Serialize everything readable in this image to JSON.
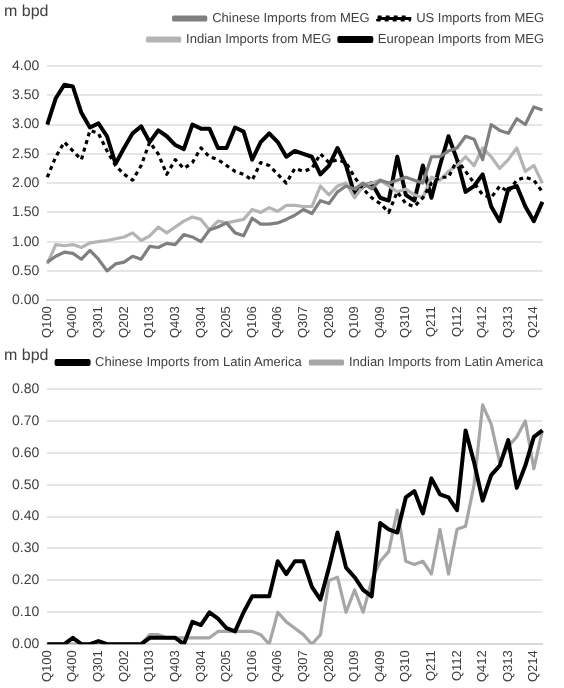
{
  "chart_data": [
    {
      "type": "line",
      "ylabel": "m bpd",
      "grid": "y",
      "legend": "top",
      "marker": "none",
      "categories": [
        "Q100",
        null,
        null,
        "Q400",
        null,
        null,
        "Q301",
        null,
        null,
        "Q202",
        null,
        null,
        "Q103",
        null,
        null,
        "Q403",
        null,
        null,
        "Q304",
        null,
        null,
        "Q205",
        null,
        null,
        "Q106",
        null,
        null,
        "Q406",
        null,
        null,
        "Q307",
        null,
        null,
        "Q208",
        null,
        null,
        "Q109",
        null,
        null,
        "Q409",
        null,
        null,
        "Q310",
        null,
        null,
        "Q211",
        null,
        null,
        "Q112",
        null,
        null,
        "Q412",
        null,
        null,
        "Q313",
        null,
        null,
        "Q214",
        null
      ],
      "ylim": [
        0,
        4
      ],
      "yticks": [
        {
          "value": 0,
          "label": "0.00"
        },
        {
          "value": 0.5,
          "label": "0.50"
        },
        {
          "value": 1,
          "label": "1.00"
        },
        {
          "value": 1.5,
          "label": "1.50"
        },
        {
          "value": 2,
          "label": "2.00"
        },
        {
          "value": 2.5,
          "label": "2.50"
        },
        {
          "value": 3,
          "label": "3.00"
        },
        {
          "value": 3.5,
          "label": "3.50"
        },
        {
          "value": 4,
          "label": "4.00"
        }
      ],
      "series": [
        {
          "name": "Chinese Imports from MEG",
          "color": "#7f7f7f",
          "line_style": "solid",
          "values": [
            0.65,
            0.75,
            0.82,
            0.8,
            0.7,
            0.85,
            0.7,
            0.5,
            0.62,
            0.65,
            0.75,
            0.7,
            0.92,
            0.9,
            0.97,
            0.95,
            1.12,
            1.08,
            1.0,
            1.2,
            1.25,
            1.32,
            1.15,
            1.1,
            1.4,
            1.3,
            1.3,
            1.32,
            1.38,
            1.45,
            1.55,
            1.48,
            1.7,
            1.65,
            1.85,
            1.95,
            1.9,
            2.0,
            1.9,
            2.05,
            2.0,
            2.05,
            2.1,
            2.05,
            2.0,
            2.45,
            2.45,
            2.55,
            2.6,
            2.8,
            2.75,
            2.4,
            3.0,
            2.9,
            2.85,
            3.1,
            3.0,
            3.3,
            3.25
          ]
        },
        {
          "name": "US Imports from MEG",
          "color": "#000000",
          "line_style": "dotted",
          "values": [
            2.1,
            2.45,
            2.7,
            2.55,
            2.4,
            2.9,
            2.85,
            2.55,
            2.3,
            2.15,
            2.05,
            2.3,
            2.7,
            2.5,
            2.15,
            2.4,
            2.25,
            2.35,
            2.6,
            2.45,
            2.4,
            2.3,
            2.2,
            2.15,
            2.05,
            2.35,
            2.3,
            2.15,
            2.0,
            2.25,
            2.2,
            2.25,
            2.5,
            2.35,
            2.4,
            2.35,
            2.1,
            1.9,
            1.75,
            1.65,
            1.5,
            1.85,
            1.65,
            1.6,
            1.75,
            2.0,
            2.1,
            2.1,
            2.4,
            2.2,
            2.0,
            1.8,
            1.75,
            1.95,
            1.85,
            2.05,
            2.1,
            2.05,
            1.85
          ]
        },
        {
          "name": "Indian Imports from MEG",
          "color": "#b4b4b4",
          "line_style": "solid",
          "values": [
            0.62,
            0.95,
            0.93,
            0.95,
            0.9,
            0.98,
            1.0,
            1.02,
            1.05,
            1.08,
            1.15,
            1.02,
            1.1,
            1.25,
            1.15,
            1.25,
            1.35,
            1.42,
            1.38,
            1.2,
            1.35,
            1.32,
            1.35,
            1.38,
            1.55,
            1.5,
            1.58,
            1.52,
            1.62,
            1.62,
            1.6,
            1.6,
            1.95,
            1.8,
            1.95,
            2.0,
            1.75,
            1.95,
            2.0,
            2.05,
            1.95,
            1.85,
            1.9,
            1.8,
            1.75,
            2.1,
            2.05,
            2.2,
            2.3,
            2.45,
            2.3,
            2.6,
            2.45,
            2.25,
            2.4,
            2.6,
            2.2,
            2.3,
            2.0
          ]
        },
        {
          "name": "European Imports from MEG",
          "color": "#000000",
          "line_style": "solid",
          "values": [
            3.0,
            3.45,
            3.68,
            3.65,
            3.2,
            2.95,
            3.02,
            2.8,
            2.33,
            2.6,
            2.85,
            2.97,
            2.7,
            2.9,
            2.8,
            2.65,
            2.58,
            3.0,
            2.93,
            2.93,
            2.6,
            2.6,
            2.95,
            2.88,
            2.4,
            2.7,
            2.85,
            2.7,
            2.45,
            2.55,
            2.5,
            2.45,
            2.15,
            2.3,
            2.6,
            2.3,
            1.8,
            1.95,
            2.0,
            1.75,
            1.7,
            2.45,
            1.8,
            1.7,
            2.3,
            1.75,
            2.3,
            2.8,
            2.4,
            1.85,
            1.95,
            2.15,
            1.6,
            1.35,
            1.9,
            1.95,
            1.6,
            1.35,
            1.68
          ]
        }
      ]
    },
    {
      "type": "line",
      "ylabel": "m bpd",
      "grid": "y",
      "legend": "top",
      "marker": "none",
      "categories": [
        "Q100",
        null,
        null,
        "Q400",
        null,
        null,
        "Q301",
        null,
        null,
        "Q202",
        null,
        null,
        "Q103",
        null,
        null,
        "Q403",
        null,
        null,
        "Q304",
        null,
        null,
        "Q205",
        null,
        null,
        "Q106",
        null,
        null,
        "Q406",
        null,
        null,
        "Q307",
        null,
        null,
        "Q208",
        null,
        null,
        "Q109",
        null,
        null,
        "Q409",
        null,
        null,
        "Q310",
        null,
        null,
        "Q211",
        null,
        null,
        "Q112",
        null,
        null,
        "Q412",
        null,
        null,
        "Q313",
        null,
        null,
        "Q214",
        null
      ],
      "ylim": [
        0,
        0.8
      ],
      "yticks": [
        {
          "value": 0,
          "label": "0.00"
        },
        {
          "value": 0.1,
          "label": "0.10"
        },
        {
          "value": 0.2,
          "label": "0.20"
        },
        {
          "value": 0.3,
          "label": "0.30"
        },
        {
          "value": 0.4,
          "label": "0.40"
        },
        {
          "value": 0.5,
          "label": "0.50"
        },
        {
          "value": 0.6,
          "label": "0.60"
        },
        {
          "value": 0.7,
          "label": "0.70"
        },
        {
          "value": 0.8,
          "label": "0.80"
        }
      ],
      "series": [
        {
          "name": "Chinese Imports from Latin America",
          "color": "#000000",
          "line_style": "solid",
          "values": [
            0,
            0,
            0,
            0.02,
            0,
            0,
            0.01,
            0,
            0,
            0,
            0,
            0,
            0.02,
            0.02,
            0.02,
            0.02,
            0,
            0.07,
            0.06,
            0.1,
            0.08,
            0.05,
            0.04,
            0.1,
            0.15,
            0.15,
            0.15,
            0.26,
            0.22,
            0.26,
            0.26,
            0.18,
            0.14,
            0.24,
            0.35,
            0.24,
            0.21,
            0.17,
            0.15,
            0.38,
            0.36,
            0.35,
            0.46,
            0.48,
            0.41,
            0.52,
            0.47,
            0.46,
            0.42,
            0.67,
            0.57,
            0.45,
            0.53,
            0.56,
            0.64,
            0.49,
            0.56,
            0.65,
            0.67
          ]
        },
        {
          "name": "Indian Imports from Latin America",
          "color": "#a6a6a6",
          "line_style": "solid",
          "values": [
            0,
            0,
            0,
            0,
            0,
            0,
            0,
            0,
            0,
            0,
            0,
            0,
            0.03,
            0.03,
            0.02,
            0.02,
            0.02,
            0.02,
            0.02,
            0.02,
            0.04,
            0.04,
            0.04,
            0.04,
            0.04,
            0.03,
            0,
            0.1,
            0.07,
            0.05,
            0.03,
            0,
            0.03,
            0.2,
            0.21,
            0.1,
            0.17,
            0.1,
            0.2,
            0.26,
            0.29,
            0.42,
            0.26,
            0.25,
            0.26,
            0.22,
            0.36,
            0.22,
            0.36,
            0.37,
            0.5,
            0.75,
            0.69,
            0.57,
            0.62,
            0.65,
            0.7,
            0.55,
            0.67
          ]
        }
      ]
    }
  ]
}
